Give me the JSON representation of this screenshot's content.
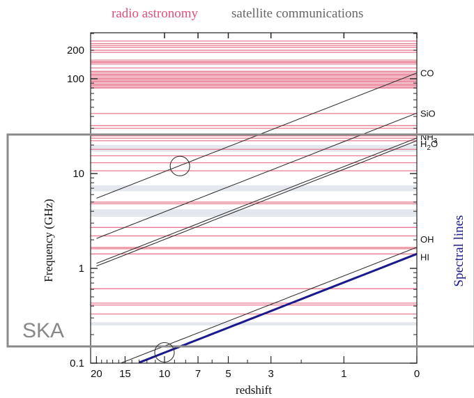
{
  "chart_data": {
    "type": "line",
    "legend_top": [
      {
        "label": "radio astronomy",
        "color": "#e0507a"
      },
      {
        "label": "satellite communications",
        "color": "#666666"
      }
    ],
    "xlabel": "redshift",
    "ylabel": "Frequency (GHz)",
    "x_scale": "log(1+z), reversed",
    "y_scale": "log",
    "ylim": [
      0.1,
      300
    ],
    "xlim": [
      20,
      0
    ],
    "x_tick_labels": [
      "20",
      "15",
      "10",
      "7",
      "5",
      "3",
      "1",
      "0"
    ],
    "x_ticks": [
      20,
      15,
      10,
      7,
      5,
      3,
      1,
      0
    ],
    "y_tick_labels": [
      "0.1",
      "1",
      "10",
      "100",
      "200"
    ],
    "y_ticks": [
      0.1,
      1,
      10,
      100,
      200
    ],
    "series": [
      {
        "name": "CO",
        "rest_freq_ghz": 115.27,
        "color": "#333333",
        "label": "CO"
      },
      {
        "name": "SiO",
        "rest_freq_ghz": 43.4,
        "color": "#333333",
        "label": "SiO"
      },
      {
        "name": "NH3",
        "rest_freq_ghz": 23.7,
        "color": "#333333",
        "label": "NH",
        "sub": "3"
      },
      {
        "name": "H2O",
        "rest_freq_ghz": 22.2,
        "color": "#333333",
        "label": "H",
        "sub": "2",
        "suffix": "O"
      },
      {
        "name": "OH",
        "rest_freq_ghz": 1.667,
        "color": "#333333",
        "label": "OH"
      },
      {
        "name": "HI",
        "rest_freq_ghz": 1.42,
        "color": "#1a1a8c",
        "label": "HI"
      }
    ],
    "radio_astronomy_bands_ghz": [
      250,
      235,
      225,
      215,
      200,
      190,
      150,
      130,
      120,
      110,
      100,
      94,
      86,
      80,
      43,
      32,
      30,
      25,
      23.6,
      22.2,
      18,
      15.4,
      13,
      10.7,
      5.0,
      4.8,
      2.7,
      2.2,
      1.66,
      1.61,
      1.42,
      0.61,
      0.43,
      0.41,
      0.33,
      0.15
    ],
    "radio_astronomy_wide_ranges_ghz": [
      [
        80,
        120
      ],
      [
        140,
        160
      ]
    ],
    "satellite_bands_ghz": [
      [
        17,
        20
      ],
      [
        6.5,
        7.5
      ],
      [
        3.5,
        4.2
      ],
      [
        0.25,
        0.27
      ]
    ],
    "annotations": {
      "box_label": "SKA",
      "right_label": "Spectral lines",
      "circles": [
        {
          "redshift": 8.5,
          "freq_ghz": 12
        },
        {
          "redshift": 10,
          "freq_ghz": 0.13
        }
      ]
    },
    "colors": {
      "radio": "#e87a8f",
      "satellite": "#d8dde6",
      "hi_line": "#1a1a8c",
      "ska_box": "#888888"
    }
  }
}
